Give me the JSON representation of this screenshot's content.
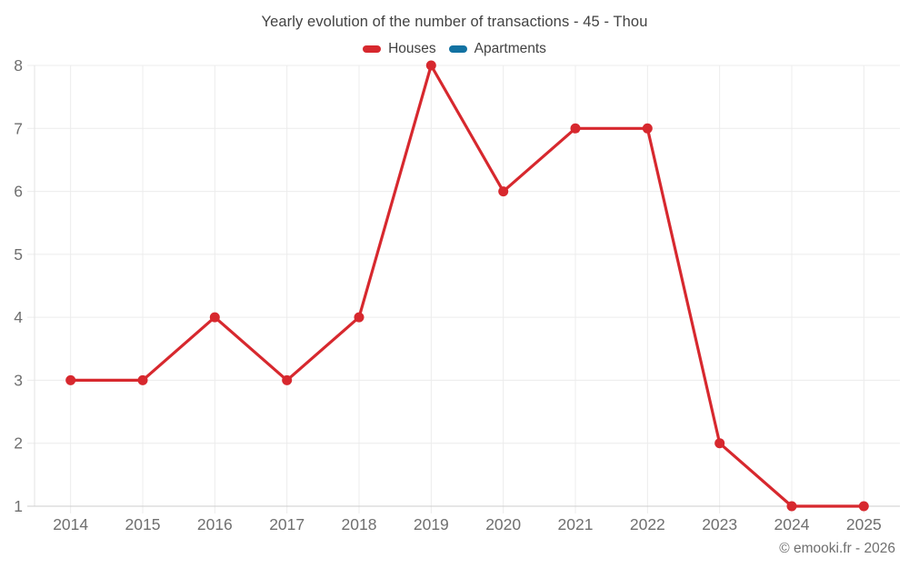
{
  "header": {
    "title": "Yearly evolution of the number of transactions - 45 - Thou"
  },
  "legend": {
    "items": [
      {
        "label": "Houses",
        "color": "#d7282e"
      },
      {
        "label": "Apartments",
        "color": "#1272a2"
      }
    ]
  },
  "footer": {
    "copyright": "© emooki.fr - 2026"
  },
  "chart_data": {
    "type": "line",
    "title": "Yearly evolution of the number of transactions - 45 - Thou",
    "categories": [
      "2014",
      "2015",
      "2016",
      "2017",
      "2018",
      "2019",
      "2020",
      "2021",
      "2022",
      "2023",
      "2024",
      "2025"
    ],
    "series": [
      {
        "name": "Houses",
        "color": "#d7282e",
        "values": [
          3,
          3,
          4,
          3,
          4,
          8,
          6,
          7,
          7,
          2,
          1,
          1
        ]
      },
      {
        "name": "Apartments",
        "color": "#1272a2",
        "values": []
      }
    ],
    "xlabel": "",
    "ylabel": "",
    "ylim": [
      1,
      8
    ],
    "y_ticks": [
      1,
      2,
      3,
      4,
      5,
      6,
      7,
      8
    ],
    "grid": true,
    "legend_position": "top",
    "axis_label_color": "#6f6f6f",
    "grid_color": "#ececec",
    "axis_line_color": "#cccccc"
  }
}
